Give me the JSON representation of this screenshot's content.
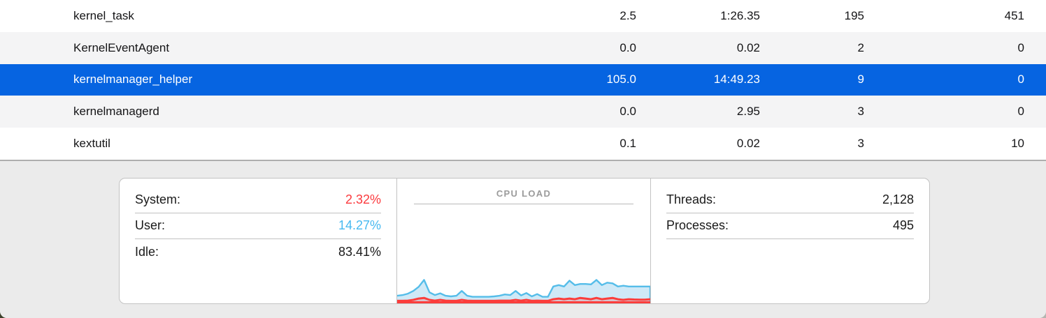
{
  "table": {
    "rows": [
      {
        "name": "kernel_task",
        "cpu": "2.5",
        "cpu_time": "1:26.35",
        "threads": "195",
        "idle_wake_ups": "451",
        "selected": false
      },
      {
        "name": "KernelEventAgent",
        "cpu": "0.0",
        "cpu_time": "0.02",
        "threads": "2",
        "idle_wake_ups": "0",
        "selected": false
      },
      {
        "name": "kernelmanager_helper",
        "cpu": "105.0",
        "cpu_time": "14:49.23",
        "threads": "9",
        "idle_wake_ups": "0",
        "selected": true
      },
      {
        "name": "kernelmanagerd",
        "cpu": "0.0",
        "cpu_time": "2.95",
        "threads": "3",
        "idle_wake_ups": "0",
        "selected": false
      },
      {
        "name": "kextutil",
        "cpu": "0.1",
        "cpu_time": "0.02",
        "threads": "3",
        "idle_wake_ups": "10",
        "selected": false
      }
    ]
  },
  "summary": {
    "cpu_stats": [
      {
        "label": "System:",
        "value": "2.32%",
        "color": "red"
      },
      {
        "label": "User:",
        "value": "14.27%",
        "color": "blue"
      },
      {
        "label": "Idle:",
        "value": "83.41%",
        "color": "default"
      }
    ],
    "counts": [
      {
        "label": "Threads:",
        "value": "2,128"
      },
      {
        "label": "Processes:",
        "value": "495"
      }
    ]
  },
  "colors": {
    "selected_row": "#0664e1",
    "system_red": "#fb3a3e",
    "user_blue": "#47b9f0"
  },
  "chart_data": {
    "type": "area",
    "title": "CPU LOAD",
    "ylim": [
      0,
      100
    ],
    "legend_position": "none",
    "grid": false,
    "stacked": true,
    "series": [
      {
        "name": "System",
        "values": [
          2.0,
          2.0,
          2.2,
          2.8,
          3.9,
          4.4,
          2.8,
          2.2,
          2.8,
          2.2,
          2.0,
          2.0,
          2.8,
          2.2,
          2.0,
          2.0,
          2.0,
          2.0,
          2.0,
          2.2,
          2.2,
          2.2,
          2.8,
          2.2,
          2.8,
          2.0,
          2.2,
          2.0,
          2.0,
          3.3,
          3.9,
          3.3,
          3.9,
          3.3,
          4.4,
          3.9,
          3.3,
          4.4,
          3.3,
          3.9,
          4.4,
          3.3,
          2.8,
          3.3,
          3.1,
          3.0,
          3.0,
          3.3
        ]
      },
      {
        "name": "User",
        "values": [
          4.1,
          4.7,
          5.6,
          7.2,
          9.4,
          14.5,
          6.1,
          4.5,
          5.3,
          3.9,
          3.6,
          4.1,
          7.2,
          3.9,
          3.3,
          3.3,
          3.3,
          3.3,
          3.6,
          3.9,
          5.0,
          4.5,
          7.2,
          4.2,
          5.5,
          3.6,
          5.3,
          3.3,
          3.3,
          10.3,
          10.8,
          10.3,
          14.4,
          11.4,
          11.2,
          11.7,
          12.0,
          14.5,
          11.4,
          12.8,
          11.7,
          10.3,
          11.4,
          10.3,
          10.5,
          10.6,
          10.6,
          10.3
        ]
      }
    ],
    "colors": {
      "user_stroke": "#55bde9",
      "user_fill": "#cfe9f7",
      "system_stroke": "#fb3d3b",
      "system_fill": "rgba(251,61,59,0.22)"
    }
  }
}
